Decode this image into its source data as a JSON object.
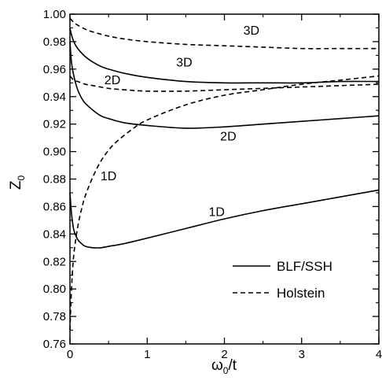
{
  "chart_data": {
    "type": "line",
    "xlabel": "ω0/t",
    "ylabel": "Z0",
    "xlim": [
      0,
      4
    ],
    "ylim": [
      0.76,
      1.0
    ],
    "x_ticks": [
      0,
      1,
      2,
      3,
      4
    ],
    "y_ticks": [
      0.76,
      0.78,
      0.8,
      0.82,
      0.84,
      0.86,
      0.88,
      0.9,
      0.92,
      0.94,
      0.96,
      0.98,
      1.0
    ],
    "x_tick_labels": [
      "0",
      "1",
      "2",
      "3",
      "4"
    ],
    "y_tick_labels": [
      "0.76",
      "0.78",
      "0.80",
      "0.82",
      "0.84",
      "0.86",
      "0.88",
      "0.90",
      "0.92",
      "0.94",
      "0.96",
      "0.98",
      "1.00"
    ],
    "grid": false,
    "legend_position": "bottom-right",
    "legend": [
      {
        "label": "BLF/SSH",
        "style": "solid"
      },
      {
        "label": "Holstein",
        "style": "dashed"
      }
    ],
    "series": [
      {
        "model": "BLF/SSH",
        "dim": "1D",
        "style": "solid",
        "x": [
          0.0,
          0.02,
          0.05,
          0.1,
          0.15,
          0.2,
          0.3,
          0.4,
          0.5,
          0.7,
          1.0,
          1.5,
          2.0,
          2.5,
          3.0,
          3.5,
          4.0
        ],
        "y": [
          0.87,
          0.855,
          0.843,
          0.836,
          0.833,
          0.831,
          0.83,
          0.83,
          0.831,
          0.833,
          0.837,
          0.844,
          0.851,
          0.857,
          0.862,
          0.867,
          0.872
        ]
      },
      {
        "model": "BLF/SSH",
        "dim": "2D",
        "style": "solid",
        "x": [
          0.0,
          0.02,
          0.05,
          0.1,
          0.15,
          0.2,
          0.3,
          0.4,
          0.5,
          0.7,
          1.0,
          1.5,
          2.0,
          2.5,
          3.0,
          3.5,
          4.0
        ],
        "y": [
          0.98,
          0.965,
          0.955,
          0.945,
          0.939,
          0.935,
          0.93,
          0.926,
          0.924,
          0.921,
          0.919,
          0.917,
          0.918,
          0.92,
          0.922,
          0.924,
          0.926
        ]
      },
      {
        "model": "BLF/SSH",
        "dim": "3D",
        "style": "solid",
        "x": [
          0.0,
          0.02,
          0.05,
          0.1,
          0.2,
          0.3,
          0.4,
          0.5,
          0.7,
          1.0,
          1.5,
          2.0,
          2.5,
          3.0,
          3.5,
          4.0
        ],
        "y": [
          0.99,
          0.985,
          0.98,
          0.975,
          0.969,
          0.965,
          0.962,
          0.96,
          0.957,
          0.954,
          0.951,
          0.95,
          0.95,
          0.95,
          0.951,
          0.951
        ]
      },
      {
        "model": "Holstein",
        "dim": "1D",
        "style": "dashed",
        "x": [
          0.0,
          0.02,
          0.05,
          0.1,
          0.15,
          0.2,
          0.3,
          0.4,
          0.5,
          0.6,
          0.8,
          1.0,
          1.5,
          2.0,
          2.5,
          3.0,
          3.5,
          4.0
        ],
        "y": [
          0.77,
          0.8,
          0.825,
          0.845,
          0.858,
          0.868,
          0.882,
          0.893,
          0.901,
          0.907,
          0.916,
          0.923,
          0.934,
          0.941,
          0.945,
          0.949,
          0.952,
          0.955
        ]
      },
      {
        "model": "Holstein",
        "dim": "2D",
        "style": "dashed",
        "x": [
          0.0,
          0.05,
          0.1,
          0.2,
          0.3,
          0.5,
          0.7,
          1.0,
          1.5,
          2.0,
          2.5,
          3.0,
          3.5,
          4.0
        ],
        "y": [
          0.955,
          0.952,
          0.951,
          0.949,
          0.948,
          0.946,
          0.945,
          0.944,
          0.944,
          0.945,
          0.946,
          0.947,
          0.948,
          0.949
        ]
      },
      {
        "model": "Holstein",
        "dim": "3D",
        "style": "dashed",
        "x": [
          0.0,
          0.05,
          0.1,
          0.2,
          0.3,
          0.5,
          0.7,
          1.0,
          1.5,
          2.0,
          2.5,
          3.0,
          3.5,
          4.0
        ],
        "y": [
          0.997,
          0.994,
          0.992,
          0.989,
          0.987,
          0.984,
          0.982,
          0.98,
          0.978,
          0.977,
          0.976,
          0.975,
          0.975,
          0.975
        ]
      }
    ],
    "annotations": [
      {
        "text": "3D",
        "x": 2.35,
        "y": 0.985
      },
      {
        "text": "3D",
        "x": 1.48,
        "y": 0.962
      },
      {
        "text": "2D",
        "x": 0.55,
        "y": 0.949
      },
      {
        "text": "2D",
        "x": 2.05,
        "y": 0.908
      },
      {
        "text": "1D",
        "x": 0.5,
        "y": 0.879
      },
      {
        "text": "1D",
        "x": 1.9,
        "y": 0.853
      }
    ]
  }
}
